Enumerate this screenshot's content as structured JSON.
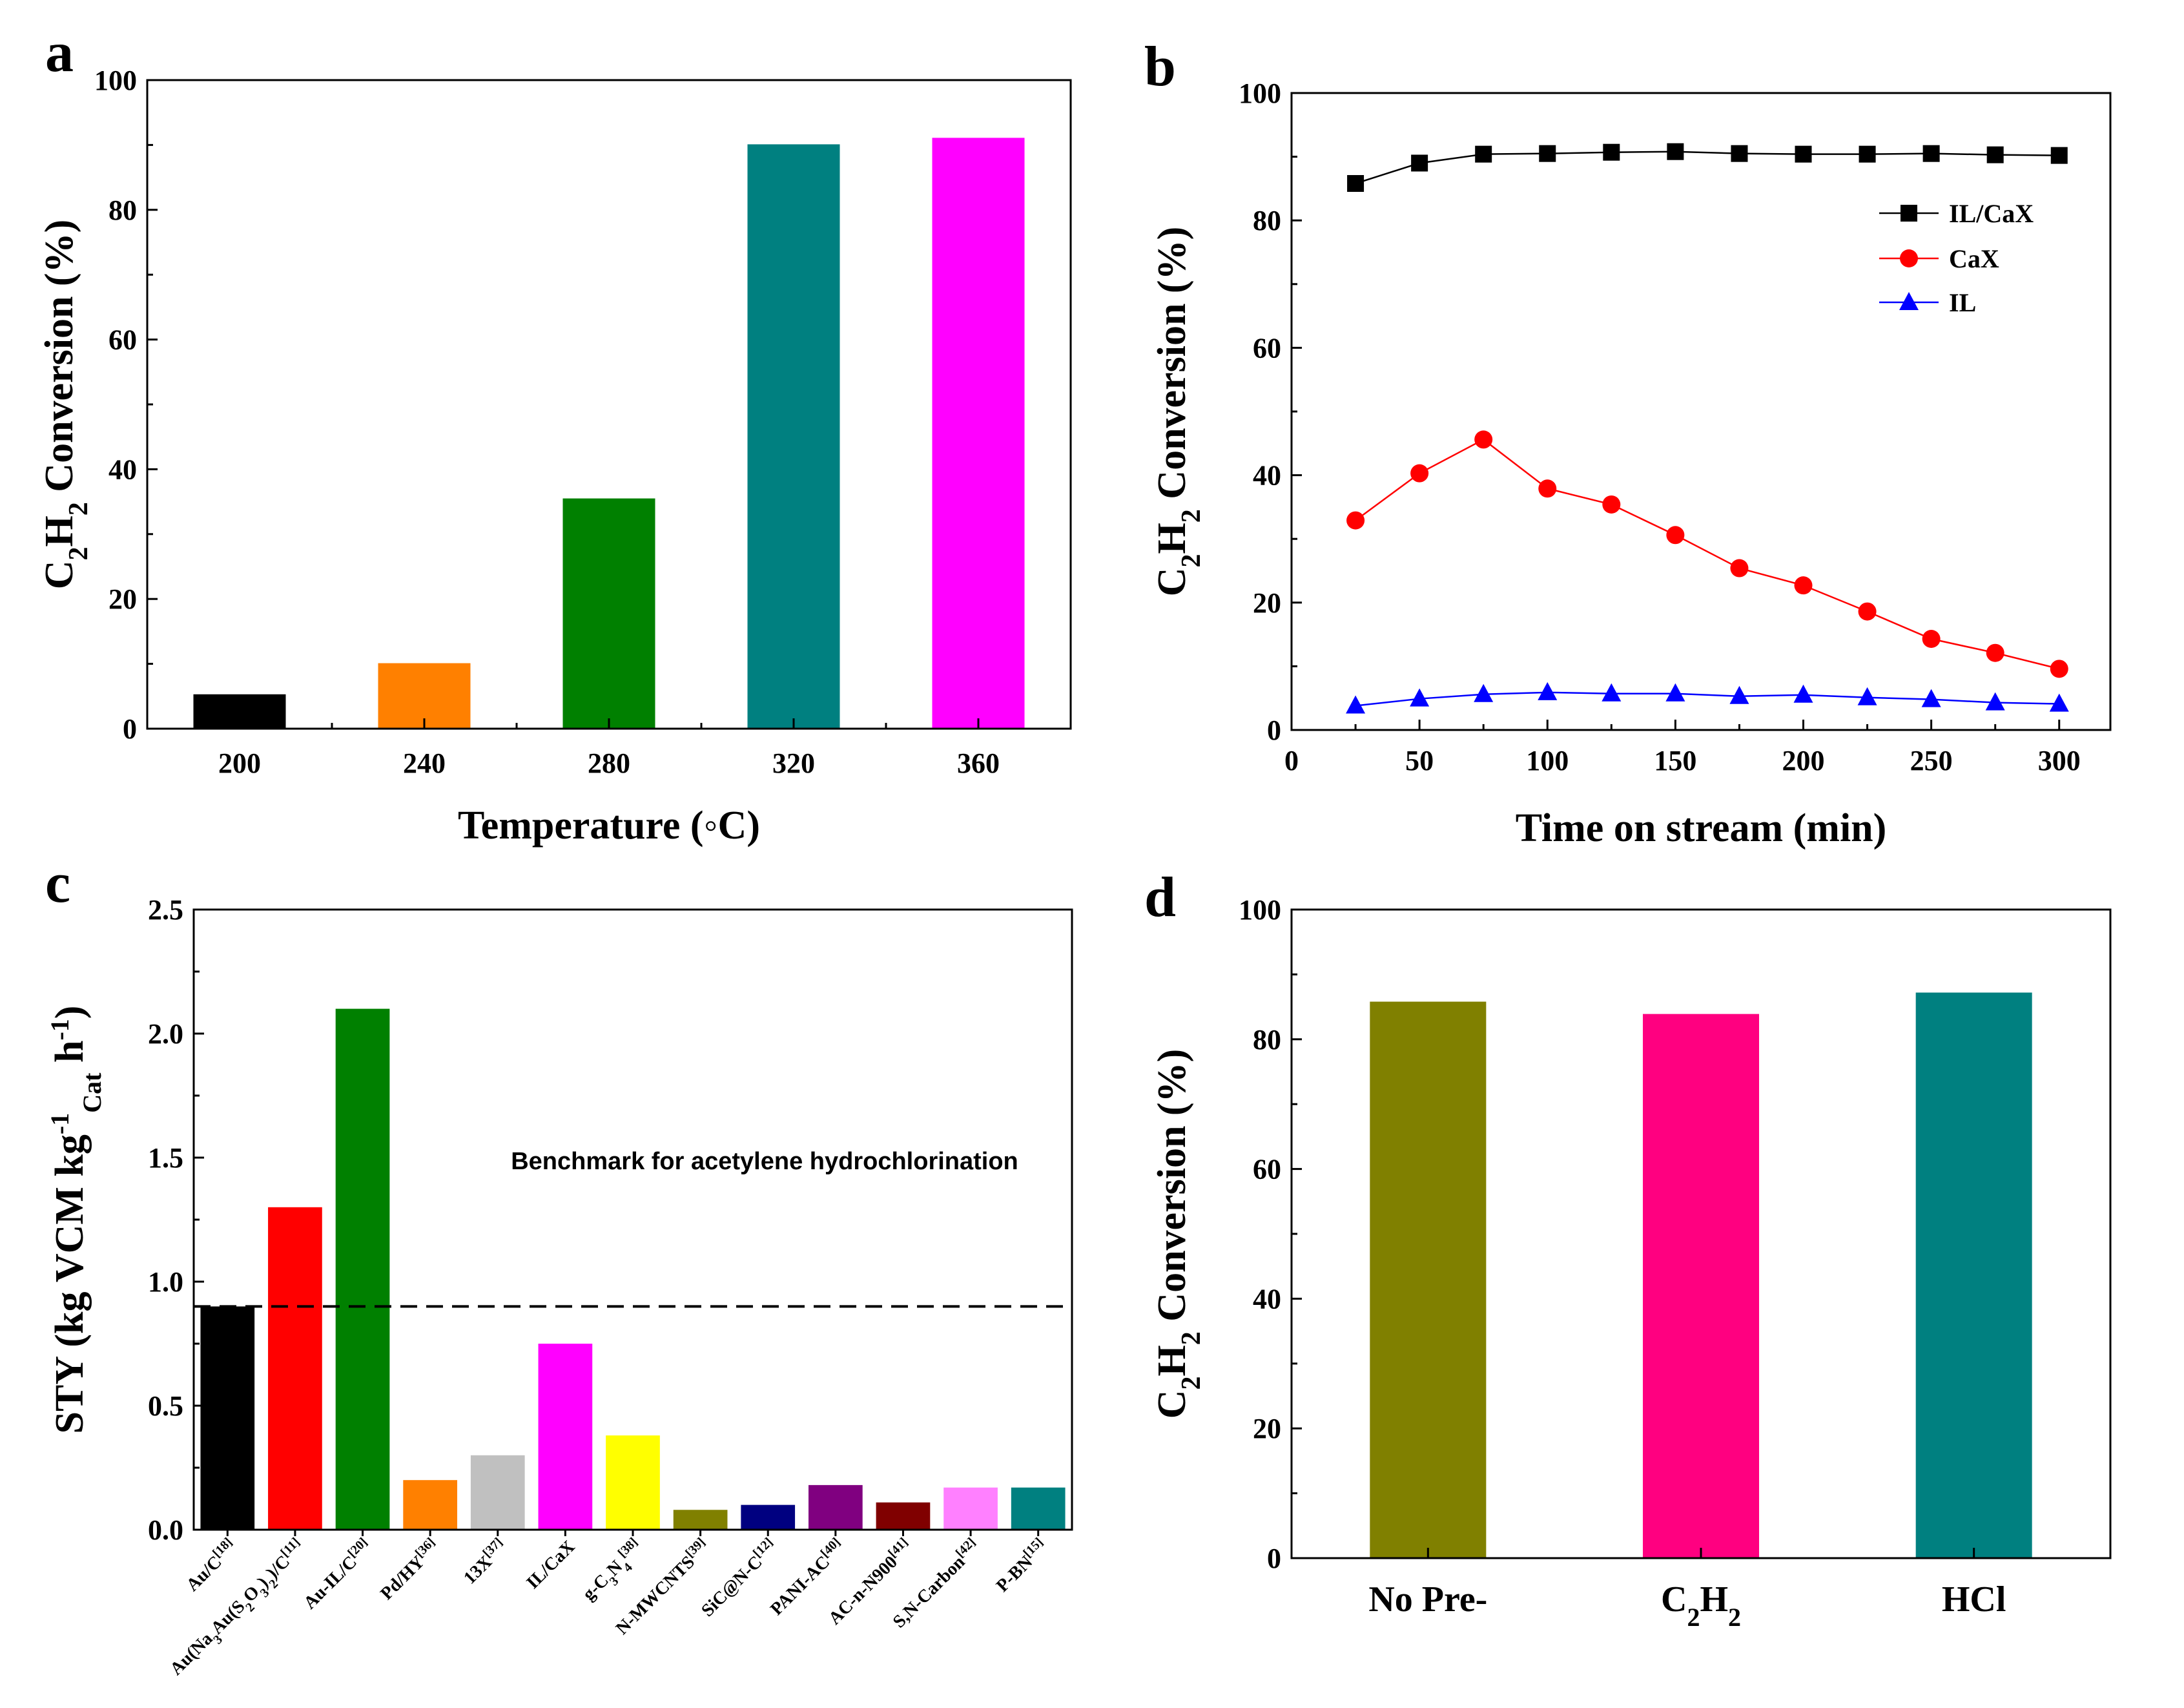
{
  "chart_data": [
    {
      "panel": "a",
      "type": "bar",
      "categories": [
        "200",
        "240",
        "280",
        "320",
        "360"
      ],
      "values": [
        5.3,
        10.1,
        35.5,
        90.1,
        91.1
      ],
      "colors": [
        "#000000",
        "#ff8000",
        "#008000",
        "#008080",
        "#ff00ff"
      ],
      "xlabel": "Temperature (◦C)",
      "ylabel": {
        "prefix": "C",
        "s1": "2",
        "mid": "H",
        "s2": "2",
        "suffix": " Conversion (%)"
      },
      "ylim": [
        0,
        100
      ],
      "yticks": [
        "0",
        "20",
        "40",
        "60",
        "80",
        "100"
      ]
    },
    {
      "panel": "b",
      "type": "line",
      "x": [
        25,
        50,
        75,
        100,
        125,
        150,
        175,
        200,
        225,
        250,
        275,
        300
      ],
      "series": [
        {
          "name": "IL/CaX",
          "color": "#000000",
          "marker": "square",
          "values": [
            85.8,
            89.0,
            90.4,
            90.5,
            90.7,
            90.8,
            90.5,
            90.4,
            90.4,
            90.5,
            90.3,
            90.2
          ]
        },
        {
          "name": "CaX",
          "color": "#ff0000",
          "marker": "circle",
          "values": [
            32.9,
            40.3,
            45.6,
            37.9,
            35.4,
            30.6,
            25.4,
            22.7,
            18.6,
            14.3,
            12.1,
            9.6
          ]
        },
        {
          "name": "IL",
          "color": "#0000ff",
          "marker": "triangle",
          "values": [
            3.8,
            4.9,
            5.6,
            5.9,
            5.7,
            5.7,
            5.3,
            5.5,
            5.1,
            4.8,
            4.3,
            4.1
          ]
        }
      ],
      "xlabel": "Time on stream (min)",
      "ylabel": {
        "prefix": "C",
        "s1": "2",
        "mid": "H",
        "s2": "2",
        "suffix": " Conversion (%)"
      },
      "xlim": [
        0,
        320
      ],
      "ylim": [
        0,
        100
      ],
      "xticks": [
        "0",
        "50",
        "100",
        "150",
        "200",
        "250",
        "300"
      ],
      "yticks": [
        "0",
        "20",
        "40",
        "60",
        "80",
        "100"
      ]
    },
    {
      "panel": "c",
      "type": "bar",
      "categories": [
        {
          "parts": [
            [
              "Au/C",
              "n"
            ],
            [
              "[18]",
              "sup"
            ]
          ]
        },
        {
          "parts": [
            [
              "Au(Na",
              "n"
            ],
            [
              "3",
              "sub"
            ],
            [
              "Au(S",
              "n"
            ],
            [
              "2",
              "sub"
            ],
            [
              "O",
              "n"
            ],
            [
              "3",
              "sub"
            ],
            [
              ")",
              "n"
            ],
            [
              "2",
              "sub"
            ],
            [
              ")/C",
              "n"
            ],
            [
              "[11]",
              "sup"
            ]
          ]
        },
        {
          "parts": [
            [
              "Au-IL/C",
              "n"
            ],
            [
              "[20]",
              "sup"
            ]
          ]
        },
        {
          "parts": [
            [
              "Pd/HY",
              "n"
            ],
            [
              "[36]",
              "sup"
            ]
          ]
        },
        {
          "parts": [
            [
              "13X",
              "n"
            ],
            [
              "[37]",
              "sup"
            ]
          ]
        },
        {
          "parts": [
            [
              "IL/CaX",
              "n"
            ]
          ]
        },
        {
          "parts": [
            [
              "g-C",
              "n"
            ],
            [
              "3",
              "sub"
            ],
            [
              "N",
              "n"
            ],
            [
              "4",
              "sub"
            ],
            [
              "[38]",
              "sup"
            ]
          ]
        },
        {
          "parts": [
            [
              "N-MWCNTS",
              "n"
            ],
            [
              "[39]",
              "sup"
            ]
          ]
        },
        {
          "parts": [
            [
              "SiC@N-C",
              "n"
            ],
            [
              "[12]",
              "sup"
            ]
          ]
        },
        {
          "parts": [
            [
              "PANI-AC",
              "n"
            ],
            [
              "[40]",
              "sup"
            ]
          ]
        },
        {
          "parts": [
            [
              "AC-n-N900",
              "n"
            ],
            [
              "[41]",
              "sup"
            ]
          ]
        },
        {
          "parts": [
            [
              "S,N-Carbon",
              "n"
            ],
            [
              "[42]",
              "sup"
            ]
          ]
        },
        {
          "parts": [
            [
              "P-BN",
              "n"
            ],
            [
              "[15]",
              "sup"
            ]
          ]
        }
      ],
      "values": [
        0.9,
        1.3,
        2.1,
        0.2,
        0.3,
        0.75,
        0.38,
        0.08,
        0.1,
        0.18,
        0.11,
        0.17,
        0.17
      ],
      "colors": [
        "#000000",
        "#ff0000",
        "#008000",
        "#ff8000",
        "#c0c0c0",
        "#ff00ff",
        "#ffff00",
        "#808000",
        "#000080",
        "#800080",
        "#800000",
        "#ff80ff",
        "#008080"
      ],
      "benchmark": 0.9,
      "annotation": "Benchmark for acetylene hydrochlorination",
      "ylabel": {
        "a": "STY (kg VCM kg",
        "sup1": "-1",
        "sub1": "Cat",
        "b": " h",
        "sup2": "-1",
        "c": ")"
      },
      "ylim": [
        0,
        2.5
      ],
      "yticks": [
        "0.0",
        "0.5",
        "1.0",
        "1.5",
        "2.0",
        "2.5"
      ]
    },
    {
      "panel": "d",
      "type": "bar",
      "categories": [
        {
          "parts": [
            [
              "No Pre-",
              "n"
            ]
          ]
        },
        {
          "parts": [
            [
              "C",
              "n"
            ],
            [
              "2",
              "sub"
            ],
            [
              "H",
              "n"
            ],
            [
              "2",
              "sub"
            ]
          ]
        },
        {
          "parts": [
            [
              "HCl",
              "n"
            ]
          ]
        }
      ],
      "values": [
        85.8,
        83.9,
        87.2
      ],
      "colors": [
        "#808000",
        "#ff0080",
        "#008080"
      ],
      "ylabel": {
        "prefix": "C",
        "s1": "2",
        "mid": "H",
        "s2": "2",
        "suffix": " Conversion (%)"
      },
      "ylim": [
        0,
        100
      ],
      "yticks": [
        "0",
        "20",
        "40",
        "60",
        "80",
        "100"
      ]
    }
  ],
  "panels": {
    "a": "a",
    "b": "b",
    "c": "c",
    "d": "d"
  }
}
